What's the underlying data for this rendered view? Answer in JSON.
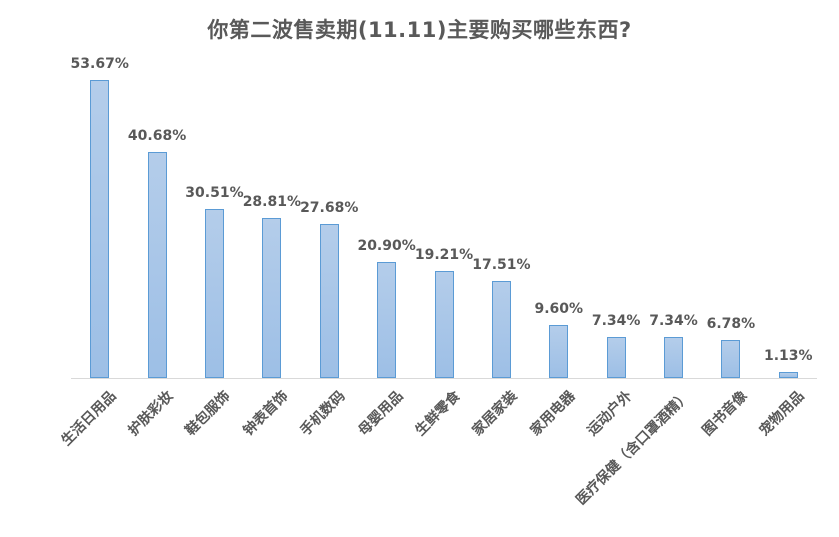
{
  "chart_data": {
    "type": "bar",
    "title": "你第二波售卖期(11.11)主要购买哪些东西?",
    "xlabel": "",
    "ylabel": "",
    "ylim": [
      0,
      55
    ],
    "grid": false,
    "legend": "none",
    "categories": [
      "生活日用品",
      "护肤彩妆",
      "鞋包服饰",
      "钟表首饰",
      "手机数码",
      "母婴用品",
      "生鲜零食",
      "家居家装",
      "家用电器",
      "运动户外",
      "医疗保健（含口罩酒精）",
      "图书音像",
      "宠物用品"
    ],
    "values": [
      53.67,
      40.68,
      30.51,
      28.81,
      27.68,
      20.9,
      19.21,
      17.51,
      9.6,
      7.34,
      7.34,
      6.78,
      1.13
    ],
    "value_labels": [
      "53.67%",
      "40.68%",
      "30.51%",
      "28.81%",
      "27.68%",
      "20.90%",
      "19.21%",
      "17.51%",
      "9.60%",
      "7.34%",
      "7.34%",
      "6.78%",
      "1.13%"
    ],
    "colors": {
      "bar_fill": "#a8c6e8",
      "bar_border": "#5b9bd5",
      "text": "#595959",
      "axis": "#d9d9d9"
    }
  }
}
